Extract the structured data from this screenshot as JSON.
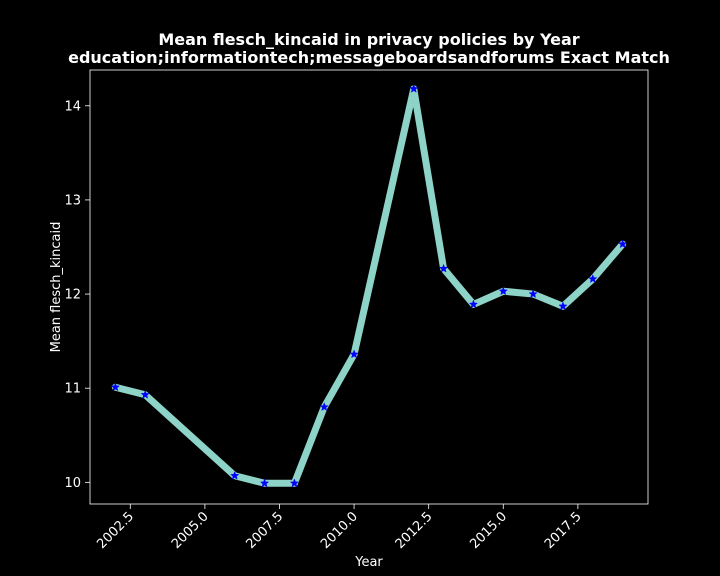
{
  "chart_data": {
    "type": "line",
    "title": "Mean flesch_kincaid in privacy policies by Year",
    "subtitle": "education;informationtech;messageboardsandforums Exact Match",
    "xlabel": "Year",
    "ylabel": "Mean flesch_kincaid",
    "xlim": [
      2001.15,
      2019.85
    ],
    "ylim": [
      9.77,
      14.38
    ],
    "x_ticks": [
      2002.5,
      2005.0,
      2007.5,
      2010.0,
      2012.5,
      2015.0,
      2017.5
    ],
    "x_tick_labels": [
      "2002.5",
      "2005.0",
      "2007.5",
      "2010.0",
      "2012.5",
      "2015.0",
      "2017.5"
    ],
    "y_ticks": [
      10,
      11,
      12,
      13,
      14
    ],
    "y_tick_labels": [
      "10",
      "11",
      "12",
      "13",
      "14"
    ],
    "grid": false,
    "colors": {
      "background": "#000000",
      "line": "#8dd3c7",
      "marker": "#0000ff",
      "axis": "#ffffff",
      "text": "#ffffff"
    },
    "series": [
      {
        "x": [
          2002,
          2003,
          2006,
          2007,
          2008,
          2009,
          2010,
          2012,
          2013,
          2014,
          2015,
          2016,
          2017,
          2018,
          2019
        ],
        "values": [
          11.01,
          10.93,
          10.07,
          9.99,
          9.99,
          10.8,
          11.36,
          14.18,
          12.27,
          11.89,
          12.03,
          12.0,
          11.87,
          12.16,
          12.53
        ],
        "marker": "star"
      }
    ]
  }
}
